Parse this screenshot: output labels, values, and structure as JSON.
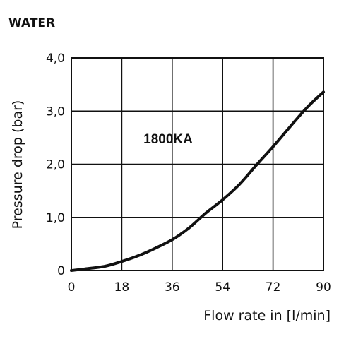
{
  "chart_data": {
    "type": "line",
    "title": "WATER",
    "xlabel": "Flow rate in [l/min]",
    "ylabel": "Pressure drop (bar)",
    "xlim": [
      0,
      90
    ],
    "ylim": [
      0,
      4
    ],
    "grid": true,
    "xticks": [
      "0",
      "18",
      "36",
      "54",
      "72",
      "90"
    ],
    "yticks": [
      "0",
      "1,0",
      "2,0",
      "3,0",
      "4,0"
    ],
    "annotation": "1800KA",
    "series": [
      {
        "x": [
          0,
          5,
          12,
          18,
          24,
          30,
          36,
          42,
          48,
          54,
          60,
          66,
          72,
          78,
          84,
          90
        ],
        "y": [
          0,
          0.03,
          0.08,
          0.17,
          0.28,
          0.42,
          0.58,
          0.8,
          1.08,
          1.33,
          1.62,
          1.98,
          2.33,
          2.7,
          3.06,
          3.36
        ]
      }
    ]
  }
}
